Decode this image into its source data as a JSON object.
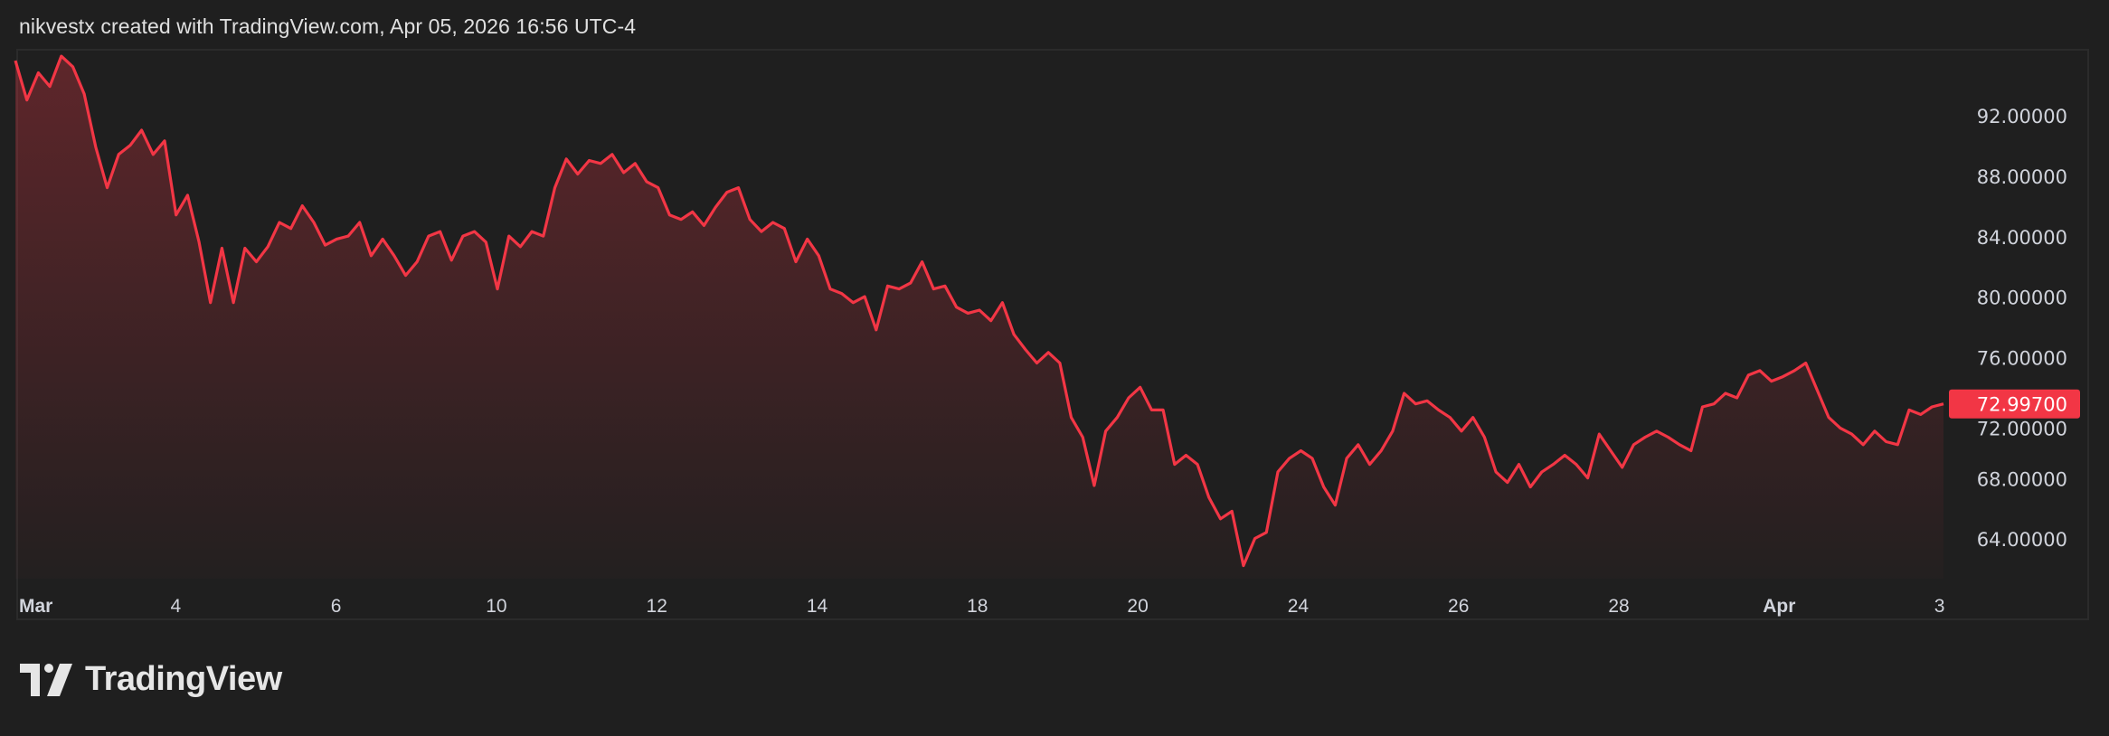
{
  "header": {
    "attribution": "nikvestx created with TradingView.com, Apr 05, 2026 16:56 UTC-4"
  },
  "logo": {
    "text": "TradingView"
  },
  "colors": {
    "line": "#f23645",
    "background": "#1f1f1f",
    "axis_text": "#d1d4dc",
    "last_price_label_bg": "#f23645"
  },
  "chart_data": {
    "type": "area",
    "series_start": "2026-03-02",
    "series_end": "2026-04-03",
    "x_axis": "trading days (weekends skipped)",
    "values": [
      95.7,
      93.1,
      94.9,
      94.0,
      96.0,
      95.3,
      93.5,
      90.0,
      87.3,
      89.5,
      90.1,
      91.1,
      89.5,
      90.4,
      85.5,
      86.8,
      83.7,
      79.7,
      83.3,
      79.7,
      83.3,
      82.4,
      83.4,
      85.0,
      84.6,
      86.1,
      85.0,
      83.5,
      83.9,
      84.1,
      85.0,
      82.8,
      83.9,
      82.8,
      81.5,
      82.4,
      84.1,
      84.4,
      82.5,
      84.1,
      84.4,
      83.7,
      80.6,
      84.1,
      83.4,
      84.4,
      84.1,
      87.3,
      89.2,
      88.2,
      89.1,
      88.9,
      89.5,
      88.3,
      88.9,
      87.7,
      87.3,
      85.5,
      85.2,
      85.7,
      84.8,
      86.0,
      87.0,
      87.3,
      85.2,
      84.4,
      85.0,
      84.6,
      82.4,
      83.9,
      82.8,
      80.6,
      80.3,
      79.7,
      80.1,
      77.9,
      80.8,
      80.6,
      81.0,
      82.4,
      80.6,
      80.8,
      79.4,
      79.0,
      79.2,
      78.5,
      79.7,
      77.6,
      76.6,
      75.7,
      76.4,
      75.7,
      72.1,
      70.8,
      67.6,
      71.2,
      72.1,
      73.4,
      74.1,
      72.6,
      72.6,
      69.0,
      69.6,
      69.0,
      66.8,
      65.4,
      65.9,
      62.3,
      64.1,
      64.5,
      68.5,
      69.4,
      69.9,
      69.4,
      67.5,
      66.3,
      69.4,
      70.3,
      69.0,
      69.9,
      71.2,
      73.7,
      73.0,
      73.2,
      72.6,
      72.1,
      71.2,
      72.1,
      70.8,
      68.5,
      67.8,
      69.0,
      67.5,
      68.5,
      69.0,
      69.6,
      69.0,
      68.1,
      71.0,
      69.9,
      68.8,
      70.3,
      70.8,
      71.2,
      70.8,
      70.3,
      69.9,
      72.8,
      73.0,
      73.7,
      73.4,
      74.9,
      75.2,
      74.5,
      74.8,
      75.2,
      75.7,
      73.9,
      72.1,
      71.4,
      71.0,
      70.3,
      71.2,
      70.5,
      70.3,
      72.6,
      72.3,
      72.8,
      72.997
    ],
    "ylim": [
      60.8,
      97.3
    ],
    "y_ticks": [
      "92.00000",
      "88.00000",
      "84.00000",
      "80.00000",
      "76.00000",
      "72.00000",
      "68.00000",
      "64.00000"
    ],
    "x_ticks": [
      {
        "label": "Mar",
        "date": "2026-03-02",
        "bold": true
      },
      {
        "label": "4",
        "date": "2026-03-04"
      },
      {
        "label": "6",
        "date": "2026-03-06"
      },
      {
        "label": "10",
        "date": "2026-03-10"
      },
      {
        "label": "12",
        "date": "2026-03-12"
      },
      {
        "label": "14",
        "date": "2026-03-14"
      },
      {
        "label": "18",
        "date": "2026-03-18"
      },
      {
        "label": "20",
        "date": "2026-03-20"
      },
      {
        "label": "24",
        "date": "2026-03-24"
      },
      {
        "label": "26",
        "date": "2026-03-26"
      },
      {
        "label": "28",
        "date": "2026-03-28"
      },
      {
        "label": "Apr",
        "date": "2026-04-01",
        "bold": true
      },
      {
        "label": "3",
        "date": "2026-04-03"
      }
    ],
    "last_price": "72.99700",
    "grid": false,
    "legend": "none"
  }
}
